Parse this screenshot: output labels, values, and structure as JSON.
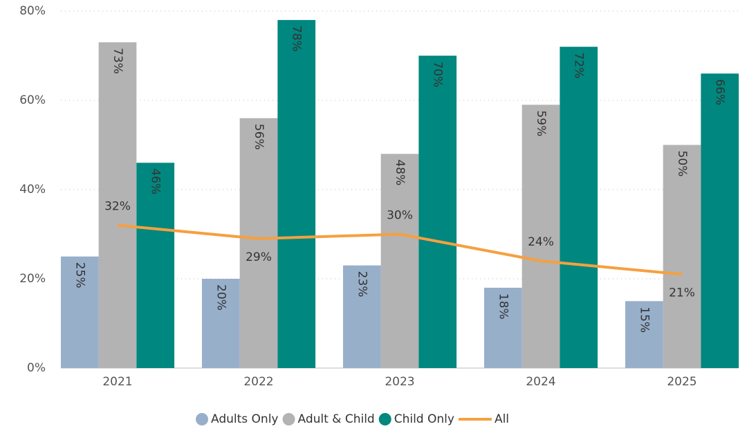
{
  "chart_data": {
    "type": "bar",
    "categories": [
      "2021",
      "2022",
      "2023",
      "2024",
      "2025"
    ],
    "series": [
      {
        "name": "Adults Only",
        "color": "#98afca",
        "values": [
          25,
          20,
          23,
          18,
          15
        ],
        "value_labels": [
          "25%",
          "20%",
          "23%",
          "18%",
          "15%"
        ]
      },
      {
        "name": "Adult & Child",
        "color": "#b3b3b3",
        "values": [
          73,
          56,
          48,
          59,
          50
        ],
        "value_labels": [
          "73%",
          "56%",
          "48%",
          "59%",
          "50%"
        ]
      },
      {
        "name": "Child Only",
        "color": "#00877f",
        "values": [
          46,
          78,
          70,
          72,
          66
        ],
        "value_labels": [
          "46%",
          "78%",
          "70%",
          "72%",
          "66%"
        ]
      },
      {
        "name": "All",
        "type": "line",
        "color": "#f5a040",
        "values": [
          32,
          29,
          30,
          24,
          21
        ],
        "value_labels": [
          "32%",
          "29%",
          "30%",
          "24%",
          "21%"
        ]
      }
    ],
    "ylim": [
      0,
      80
    ],
    "yticks": [
      {
        "value": 0,
        "label": "0%"
      },
      {
        "value": 20,
        "label": "20%"
      },
      {
        "value": 40,
        "label": "40%"
      },
      {
        "value": 60,
        "label": "60%"
      },
      {
        "value": 80,
        "label": "80%"
      }
    ],
    "grid": true,
    "legend": "bottom"
  }
}
